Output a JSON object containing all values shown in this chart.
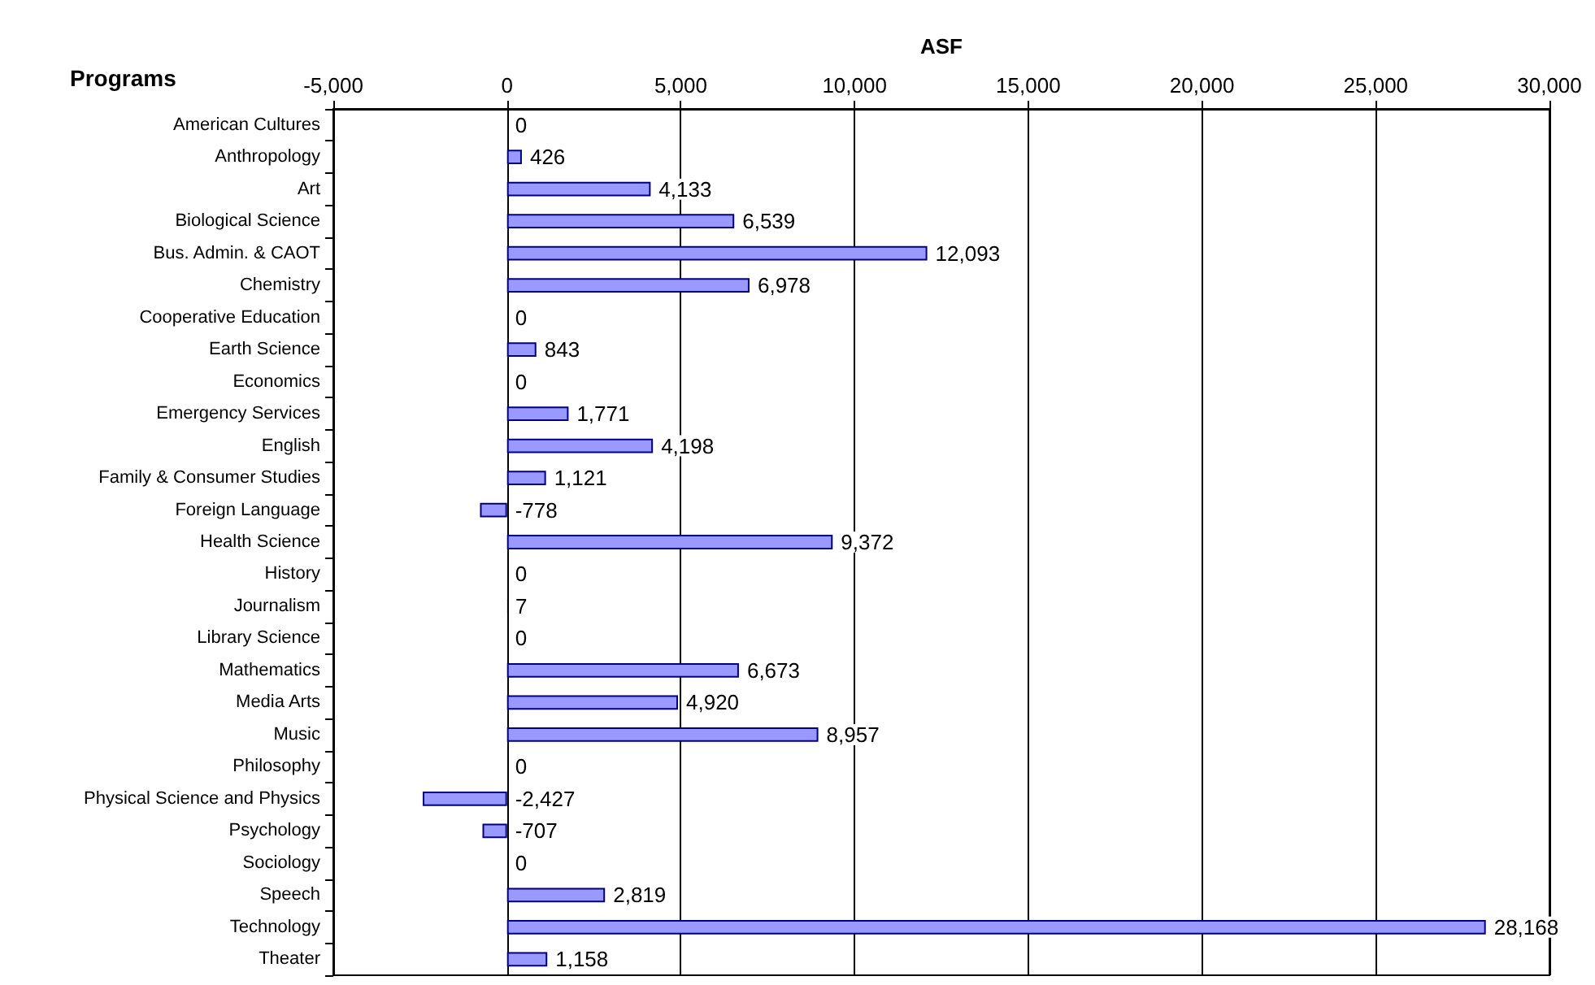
{
  "chart_data": {
    "type": "bar",
    "orientation": "horizontal",
    "xlabel": "ASF",
    "ylabel": "Programs",
    "categories": [
      "American Cultures",
      "Anthropology",
      "Art",
      "Biological Science",
      "Bus. Admin. & CAOT",
      "Chemistry",
      "Cooperative Education",
      "Earth Science",
      "Economics",
      "Emergency Services",
      "English",
      "Family & Consumer Studies",
      "Foreign Language",
      "Health Science",
      "History",
      "Journalism",
      "Library Science",
      "Mathematics",
      "Media Arts",
      "Music",
      "Philosophy",
      "Physical Science and Physics",
      "Psychology",
      "Sociology",
      "Speech",
      "Technology",
      "Theater"
    ],
    "values": [
      0,
      426,
      4133,
      6539,
      12093,
      6978,
      0,
      843,
      0,
      1771,
      4198,
      1121,
      -778,
      9372,
      0,
      7,
      0,
      6673,
      4920,
      8957,
      0,
      -2427,
      -707,
      0,
      2819,
      28168,
      1158
    ],
    "value_labels": [
      "0",
      "426",
      "4,133",
      "6,539",
      "12,093",
      "6,978",
      "0",
      "843",
      "0",
      "1,771",
      "4,198",
      "1,121",
      "-778",
      "9,372",
      "0",
      "7",
      "0",
      "6,673",
      "4,920",
      "8,957",
      "0",
      "-2,427",
      "-707",
      "0",
      "2,819",
      "28,168",
      "1,158"
    ],
    "color": "#9999ff",
    "xlim": [
      -5000,
      30000
    ],
    "xticks": [
      {
        "value": -5000,
        "label": "-5,000"
      },
      0,
      {
        "value": 5000,
        "label": "5,000"
      },
      {
        "value": 10000,
        "label": "10,000"
      },
      {
        "value": 15000,
        "label": "15,000"
      },
      {
        "value": 20000,
        "label": "20,000"
      },
      {
        "value": 25000,
        "label": "25,000"
      },
      {
        "value": 30000,
        "label": "30,000"
      }
    ],
    "grid": "x"
  }
}
